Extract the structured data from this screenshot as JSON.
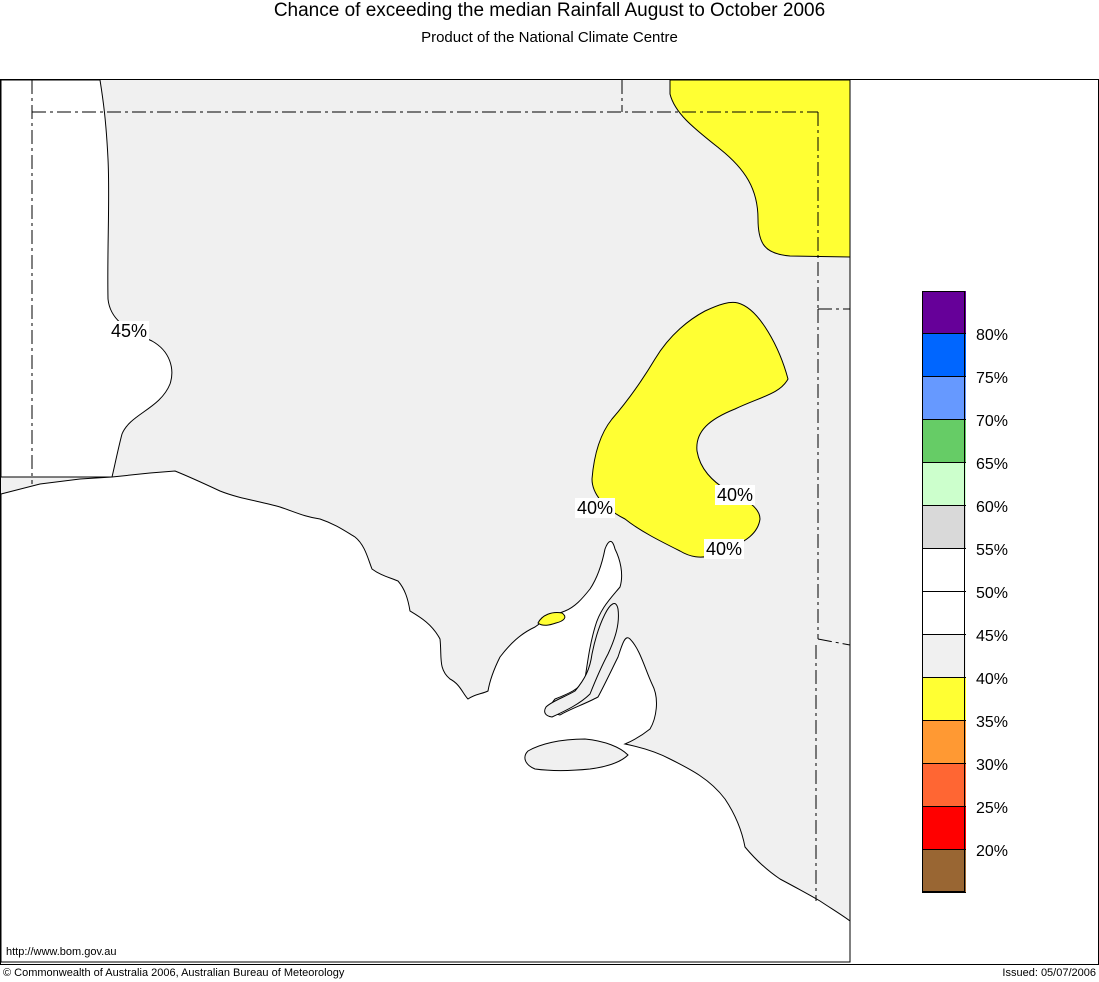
{
  "header": {
    "title": "Chance of exceeding the median Rainfall August to October 2006",
    "subtitle": "Product of the National Climate Centre"
  },
  "map": {
    "background_color": "#f0f0f0",
    "land_outside_color": "#ffffff",
    "contour_labels": [
      "45%",
      "40%",
      "40%",
      "40%"
    ],
    "highlight_color": "#ffff33"
  },
  "legend": {
    "colors": [
      "#660099",
      "#0066ff",
      "#6699ff",
      "#66cc66",
      "#ccffcc",
      "#d9d9d9",
      "#ffffff",
      "#ffffff",
      "#f0f0f0",
      "#ffff33",
      "#ff9933",
      "#ff6633",
      "#ff0000",
      "#996633"
    ],
    "labels": [
      "80%",
      "75%",
      "70%",
      "65%",
      "60%",
      "55%",
      "50%",
      "45%",
      "40%",
      "35%",
      "30%",
      "25%",
      "20%"
    ]
  },
  "footer": {
    "url": "http://www.bom.gov.au",
    "copyright": "© Commonwealth of Australia 2006, Australian Bureau of Meteorology",
    "issued": "Issued: 05/07/2006"
  }
}
